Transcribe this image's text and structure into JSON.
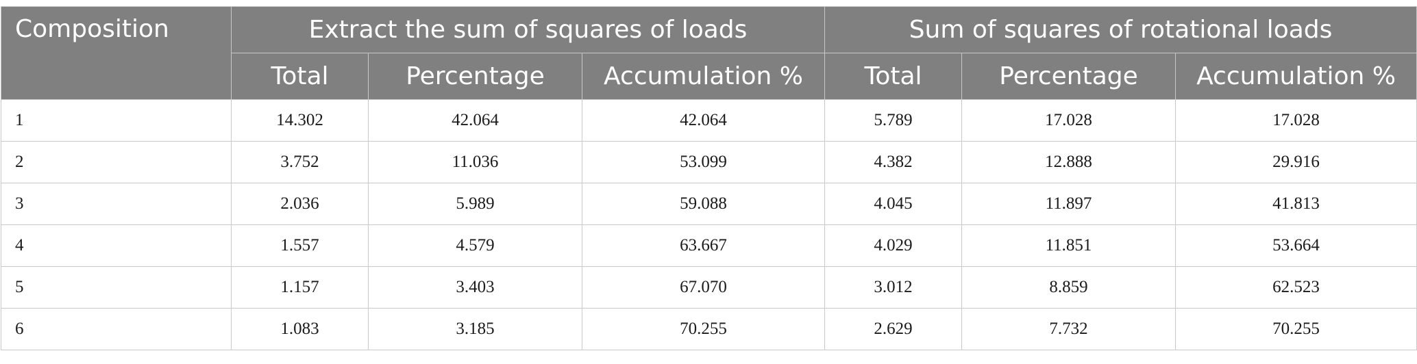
{
  "table": {
    "header": {
      "composition": "Composition",
      "group1": "Extract the sum of squares of loads",
      "group2": "Sum of squares of rotational loads",
      "sub": [
        "Total",
        "Percentage",
        "Accumulation %",
        "Total",
        "Percentage",
        "Accumulation %"
      ]
    },
    "rows": [
      [
        "1",
        "14.302",
        "42.064",
        "42.064",
        "5.789",
        "17.028",
        "17.028"
      ],
      [
        "2",
        "3.752",
        "11.036",
        "53.099",
        "4.382",
        "12.888",
        "29.916"
      ],
      [
        "3",
        "2.036",
        "5.989",
        "59.088",
        "4.045",
        "11.897",
        "41.813"
      ],
      [
        "4",
        "1.557",
        "4.579",
        "63.667",
        "4.029",
        "11.851",
        "53.664"
      ],
      [
        "5",
        "1.157",
        "3.403",
        "67.070",
        "3.012",
        "8.859",
        "62.523"
      ],
      [
        "6",
        "1.083",
        "3.185",
        "70.255",
        "2.629",
        "7.732",
        "70.255"
      ]
    ]
  }
}
